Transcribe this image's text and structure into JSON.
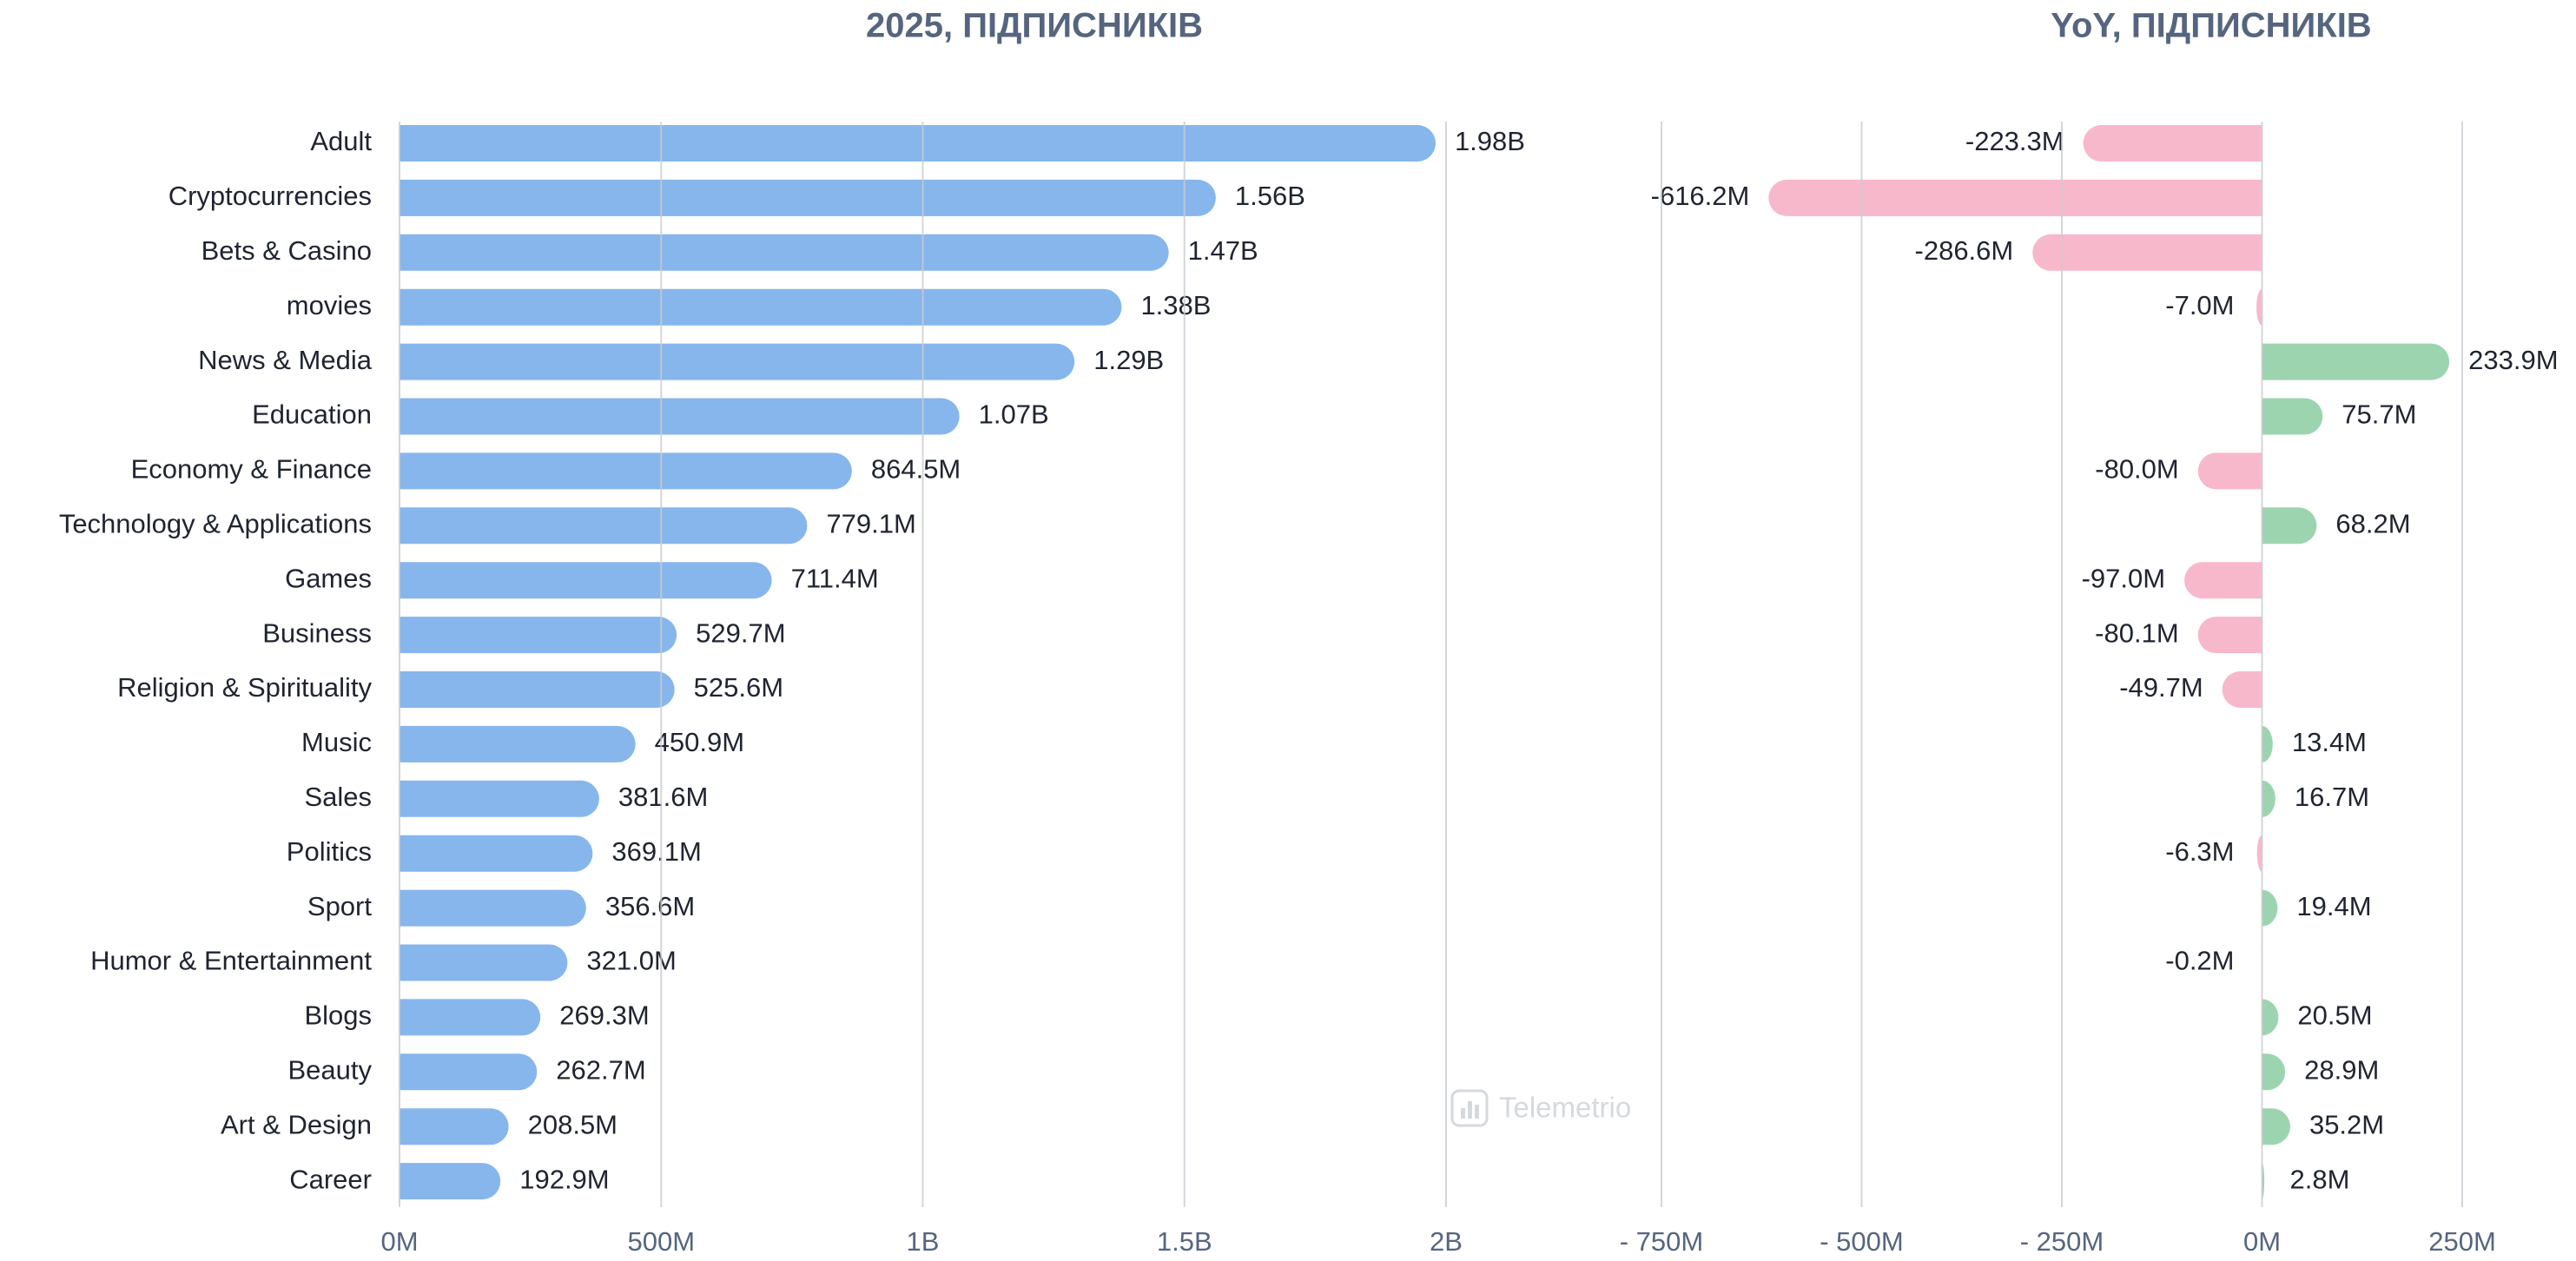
{
  "chart_data": [
    {
      "type": "bar",
      "orientation": "horizontal",
      "title": "2025, ПІДПИСНИКІВ",
      "categories": [
        "Adult",
        "Cryptocurrencies",
        "Bets & Casino",
        "movies",
        "News & Media",
        "Education",
        "Economy & Finance",
        "Technology & Applications",
        "Games",
        "Business",
        "Religion & Spirituality",
        "Music",
        "Sales",
        "Politics",
        "Sport",
        "Humor & Entertainment",
        "Blogs",
        "Beauty",
        "Art & Design",
        "Career"
      ],
      "values": [
        1980000000,
        1560000000,
        1470000000,
        1380000000,
        1290000000,
        1070000000,
        864500000,
        779100000,
        711400000,
        529700000,
        525600000,
        450900000,
        381600000,
        369100000,
        356600000,
        321000000,
        269300000,
        262700000,
        208500000,
        192900000
      ],
      "value_labels": [
        "1.98B",
        "1.56B",
        "1.47B",
        "1.38B",
        "1.29B",
        "1.07B",
        "864.5M",
        "779.1M",
        "711.4M",
        "529.7M",
        "525.6M",
        "450.9M",
        "381.6M",
        "369.1M",
        "356.6M",
        "321.0M",
        "269.3M",
        "262.7M",
        "208.5M",
        "192.9M"
      ],
      "color": "#86b6ec",
      "xlim": [
        0,
        2000000000
      ],
      "xticks": [
        {
          "value": 0,
          "label": "0M"
        },
        {
          "value": 500000000,
          "label": "500M"
        },
        {
          "value": 1000000000,
          "label": "1B"
        },
        {
          "value": 1500000000,
          "label": "1.5B"
        },
        {
          "value": 2000000000,
          "label": "2B"
        }
      ],
      "grid": true
    },
    {
      "type": "diverging_bar",
      "orientation": "horizontal",
      "title": "YoY, ПІДПИСНИКІВ",
      "values": [
        -223300000,
        -616200000,
        -286600000,
        -7000000,
        233900000,
        75700000,
        -80000000,
        68200000,
        -97000000,
        -80100000,
        -49700000,
        13400000,
        16700000,
        -6300000,
        19400000,
        -200000,
        20500000,
        28900000,
        35200000,
        2800000
      ],
      "value_labels": [
        "-223.3M",
        "-616.2M",
        "-286.6M",
        "-7.0M",
        "233.9M",
        "75.7M",
        "-80.0M",
        "68.2M",
        "-97.0M",
        "-80.1M",
        "-49.7M",
        "13.4M",
        "16.7M",
        "-6.3M",
        "19.4M",
        "-0.2M",
        "20.5M",
        "28.9M",
        "35.2M",
        "2.8M"
      ],
      "color": "#9dd4b0",
      "negative_color": "#f8b8cc",
      "xlim": [
        -750000000,
        250000000
      ],
      "xticks": [
        {
          "value": -750000000,
          "label": "- 750M"
        },
        {
          "value": -500000000,
          "label": "- 500M"
        },
        {
          "value": -250000000,
          "label": "- 250M"
        },
        {
          "value": 0,
          "label": "0M"
        },
        {
          "value": 250000000,
          "label": "250M"
        }
      ],
      "grid": true
    }
  ],
  "watermark": "Telemetrio"
}
